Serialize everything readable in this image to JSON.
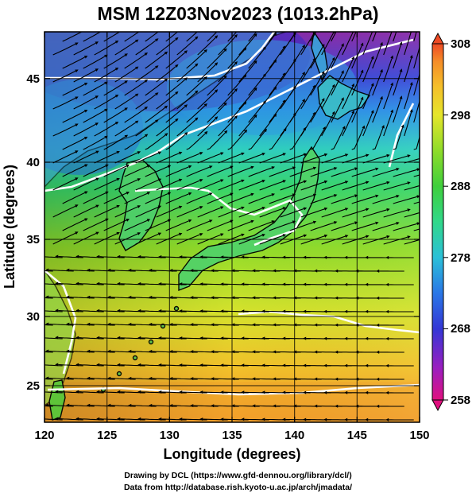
{
  "title": "MSM 12Z03Nov2023 (1013.2hPa)",
  "x_axis": {
    "label": "Longitude (degrees)",
    "ticks": [
      "120",
      "125",
      "130",
      "135",
      "140",
      "145",
      "150"
    ]
  },
  "y_axis": {
    "label": "Latitude  (degrees)",
    "ticks": [
      "25",
      "30",
      "35",
      "40",
      "45"
    ]
  },
  "colorbar": {
    "ticks": [
      "308",
      "298",
      "288",
      "278",
      "268",
      "258"
    ],
    "min": 258,
    "max": 308,
    "colors": [
      "#e0107f",
      "#9a1fc0",
      "#3437d6",
      "#2a77e6",
      "#2bc0d8",
      "#31d88a",
      "#3fcf3c",
      "#8fdc2a",
      "#e5e52a",
      "#f5bf2a",
      "#f58d28",
      "#ee4a24"
    ]
  },
  "map": {
    "lon_range": [
      120,
      150
    ],
    "lat_range": [
      22.5,
      47.8
    ],
    "white_contour_color": "#ffffff",
    "streamline_color": "#000000"
  },
  "credits": {
    "line1": "Drawing by DCL (https://www.gfd-dennou.org/library/dcl/)",
    "line2": "Data from http://database.rish.kyoto-u.ac.jp/arch/jmadata/"
  }
}
